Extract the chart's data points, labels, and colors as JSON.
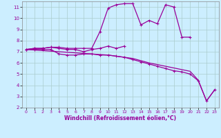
{
  "xlabel": "Windchill (Refroidissement éolien,°C)",
  "background_color": "#cceeff",
  "grid_color": "#aacccc",
  "line_color": "#990099",
  "x": [
    0,
    1,
    2,
    3,
    4,
    5,
    6,
    7,
    8,
    9,
    10,
    11,
    12,
    13,
    14,
    15,
    16,
    17,
    18,
    19,
    20,
    21,
    22,
    23
  ],
  "line1": [
    7.2,
    7.3,
    7.3,
    7.4,
    7.4,
    7.3,
    7.3,
    7.3,
    7.3,
    8.8,
    10.9,
    11.2,
    11.3,
    11.3,
    9.4,
    9.8,
    9.5,
    11.2,
    11.0,
    8.3,
    8.3,
    null,
    null,
    null
  ],
  "line2": [
    7.2,
    7.3,
    7.3,
    7.4,
    7.3,
    7.2,
    7.2,
    7.0,
    7.2,
    7.3,
    7.5,
    7.3,
    7.5,
    null,
    null,
    null,
    null,
    null,
    null,
    null,
    null,
    null,
    null,
    null
  ],
  "line3": [
    7.2,
    7.2,
    7.2,
    7.2,
    6.8,
    6.7,
    6.7,
    6.8,
    6.8,
    6.7,
    6.7,
    6.6,
    6.5,
    6.3,
    6.1,
    5.9,
    5.7,
    5.5,
    5.3,
    5.2,
    5.0,
    4.4,
    2.6,
    3.6
  ],
  "line4": [
    7.2,
    7.15,
    7.1,
    7.05,
    7.0,
    6.95,
    6.9,
    6.85,
    6.8,
    6.75,
    6.7,
    6.6,
    6.5,
    6.4,
    6.2,
    6.0,
    5.85,
    5.7,
    5.55,
    5.4,
    5.25,
    4.45,
    2.6,
    3.6
  ],
  "ylim": [
    2,
    11.5
  ],
  "xlim": [
    -0.5,
    23.5
  ],
  "yticks": [
    2,
    3,
    4,
    5,
    6,
    7,
    8,
    9,
    10,
    11
  ],
  "xticks": [
    0,
    1,
    2,
    3,
    4,
    5,
    6,
    7,
    8,
    9,
    10,
    11,
    12,
    13,
    14,
    15,
    16,
    17,
    18,
    19,
    20,
    21,
    22,
    23
  ]
}
